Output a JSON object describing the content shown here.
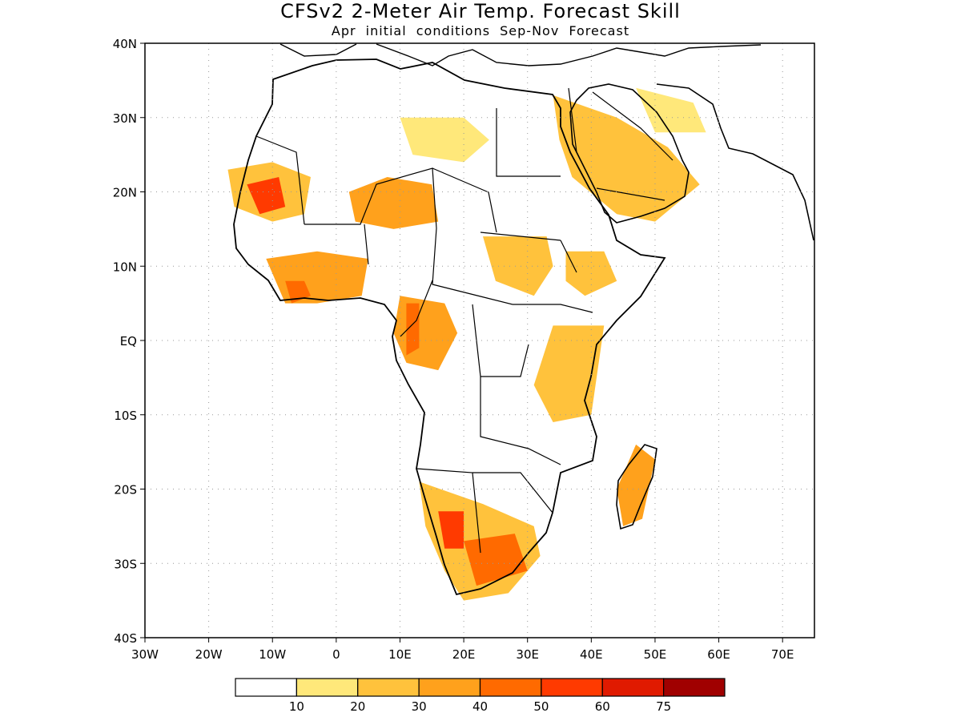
{
  "title": "CFSv2 2-Meter Air Temp. Forecast Skill",
  "subtitle": "Apr initial conditions  Sep-Nov Forecast",
  "map": {
    "region": "Africa and Arabian Peninsula",
    "lon_range": [
      -30,
      75
    ],
    "lat_range": [
      -40,
      40
    ],
    "gridlines": "dotted",
    "lon_ticks": [
      {
        "value": -30,
        "label": "30W"
      },
      {
        "value": -20,
        "label": "20W"
      },
      {
        "value": -10,
        "label": "10W"
      },
      {
        "value": 0,
        "label": "0"
      },
      {
        "value": 10,
        "label": "10E"
      },
      {
        "value": 20,
        "label": "20E"
      },
      {
        "value": 30,
        "label": "30E"
      },
      {
        "value": 40,
        "label": "40E"
      },
      {
        "value": 50,
        "label": "50E"
      },
      {
        "value": 60,
        "label": "60E"
      },
      {
        "value": 70,
        "label": "70E"
      }
    ],
    "lat_ticks": [
      {
        "value": 40,
        "label": "40N"
      },
      {
        "value": 30,
        "label": "30N"
      },
      {
        "value": 20,
        "label": "20N"
      },
      {
        "value": 10,
        "label": "10N"
      },
      {
        "value": 0,
        "label": "EQ"
      },
      {
        "value": -10,
        "label": "10S"
      },
      {
        "value": -20,
        "label": "20S"
      },
      {
        "value": -30,
        "label": "30S"
      },
      {
        "value": -40,
        "label": "40S"
      }
    ],
    "skill_regions": [
      {
        "name": "west-sahara",
        "level": 2,
        "lonlat": [
          [
            -17,
            23
          ],
          [
            -10,
            24
          ],
          [
            -4,
            22
          ],
          [
            -5,
            17
          ],
          [
            -10,
            16
          ],
          [
            -16,
            18
          ]
        ]
      },
      {
        "name": "mauritania-core",
        "level": 5,
        "lonlat": [
          [
            -14,
            21
          ],
          [
            -9,
            22
          ],
          [
            -8,
            18
          ],
          [
            -12,
            17
          ]
        ]
      },
      {
        "name": "niger-chad",
        "level": 3,
        "lonlat": [
          [
            2,
            20
          ],
          [
            8,
            22
          ],
          [
            15,
            21
          ],
          [
            16,
            16
          ],
          [
            9,
            15
          ],
          [
            3,
            16
          ]
        ]
      },
      {
        "name": "west-africa-coast",
        "level": 3,
        "lonlat": [
          [
            -11,
            11
          ],
          [
            -3,
            12
          ],
          [
            5,
            11
          ],
          [
            4,
            6
          ],
          [
            -3,
            5
          ],
          [
            -8,
            5
          ]
        ]
      },
      {
        "name": "ivory-coast-core",
        "level": 4,
        "lonlat": [
          [
            -8,
            8
          ],
          [
            -5,
            8
          ],
          [
            -4,
            6
          ],
          [
            -7,
            5
          ]
        ]
      },
      {
        "name": "libya",
        "level": 1,
        "lonlat": [
          [
            10,
            30
          ],
          [
            20,
            30
          ],
          [
            24,
            27
          ],
          [
            20,
            24
          ],
          [
            12,
            25
          ]
        ]
      },
      {
        "name": "egypt-arabia",
        "level": 2,
        "lonlat": [
          [
            34,
            33
          ],
          [
            44,
            30
          ],
          [
            52,
            26
          ],
          [
            57,
            21
          ],
          [
            50,
            16
          ],
          [
            44,
            17
          ],
          [
            37,
            22
          ],
          [
            35,
            27
          ]
        ]
      },
      {
        "name": "iran-south",
        "level": 1,
        "lonlat": [
          [
            47,
            34
          ],
          [
            56,
            32
          ],
          [
            58,
            28
          ],
          [
            50,
            28
          ]
        ]
      },
      {
        "name": "sudan-ssudan",
        "level": 2,
        "lonlat": [
          [
            23,
            14
          ],
          [
            33,
            14
          ],
          [
            34,
            10
          ],
          [
            31,
            6
          ],
          [
            25,
            8
          ]
        ]
      },
      {
        "name": "ethiopia",
        "level": 2,
        "lonlat": [
          [
            36,
            12
          ],
          [
            42,
            12
          ],
          [
            44,
            8
          ],
          [
            39,
            6
          ],
          [
            36,
            8
          ]
        ]
      },
      {
        "name": "congo",
        "level": 3,
        "lonlat": [
          [
            10,
            6
          ],
          [
            17,
            5
          ],
          [
            19,
            1
          ],
          [
            16,
            -4
          ],
          [
            11,
            -3
          ],
          [
            9,
            1
          ]
        ]
      },
      {
        "name": "gabon-core",
        "level": 4,
        "lonlat": [
          [
            11,
            5
          ],
          [
            13,
            5
          ],
          [
            13,
            -1
          ],
          [
            11,
            -2
          ]
        ]
      },
      {
        "name": "east-africa",
        "level": 2,
        "lonlat": [
          [
            34,
            2
          ],
          [
            42,
            2
          ],
          [
            40,
            -10
          ],
          [
            34,
            -11
          ],
          [
            31,
            -6
          ]
        ]
      },
      {
        "name": "namibia-southafrica",
        "level": 2,
        "lonlat": [
          [
            13,
            -19
          ],
          [
            23,
            -22
          ],
          [
            31,
            -25
          ],
          [
            32,
            -29
          ],
          [
            27,
            -34
          ],
          [
            20,
            -35
          ],
          [
            17,
            -31
          ],
          [
            14,
            -25
          ]
        ]
      },
      {
        "name": "namibia-core",
        "level": 5,
        "lonlat": [
          [
            16,
            -23
          ],
          [
            20,
            -23
          ],
          [
            20,
            -28
          ],
          [
            17,
            -28
          ]
        ]
      },
      {
        "name": "karoo-core",
        "level": 4,
        "lonlat": [
          [
            20,
            -27
          ],
          [
            28,
            -26
          ],
          [
            30,
            -31
          ],
          [
            22,
            -33
          ]
        ]
      },
      {
        "name": "madagascar",
        "level": 3,
        "lonlat": [
          [
            47,
            -14
          ],
          [
            50,
            -16
          ],
          [
            48,
            -24
          ],
          [
            45,
            -25
          ],
          [
            44,
            -20
          ]
        ]
      }
    ]
  },
  "colorbar": {
    "colors": [
      "#ffffff",
      "#ffe87a",
      "#ffc23c",
      "#ffa11c",
      "#ff6a00",
      "#ff3a00",
      "#e01a00",
      "#a00000"
    ],
    "labels": [
      "10",
      "20",
      "30",
      "40",
      "50",
      "60",
      "75"
    ]
  }
}
